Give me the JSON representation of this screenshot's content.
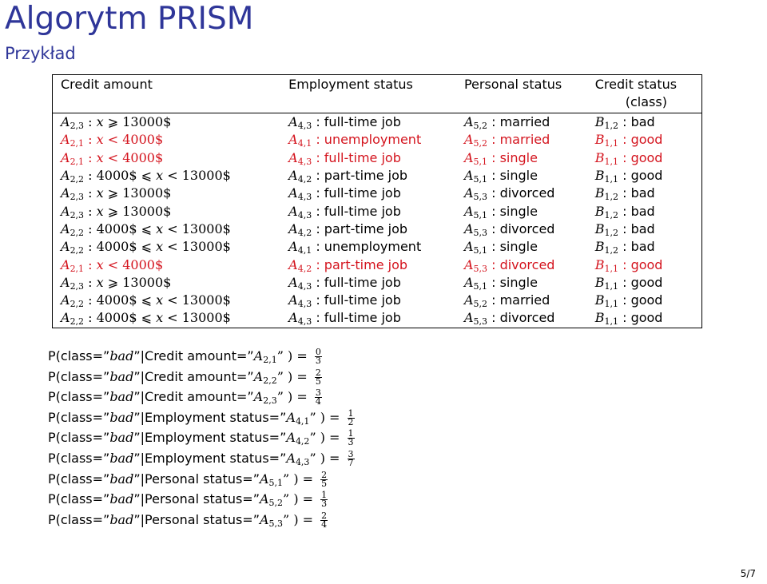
{
  "slide": {
    "title": "Algorytm PRISM",
    "subtitle": "Przykład",
    "page_number": "5/7"
  },
  "colors": {
    "title": "#2f3699",
    "highlight_row": "#d4141e"
  },
  "table": {
    "headers": [
      "Credit amount",
      "Employment status",
      "Personal status",
      "Credit status",
      "(class)"
    ],
    "rows": [
      {
        "highlight": false,
        "c1": [
          [
            "A",
            "2,3"
          ],
          " : ",
          [
            "x"
          ],
          " ⩾ 13000$"
        ],
        "c2": [
          [
            "A",
            "4,3"
          ],
          " : full-time job"
        ],
        "c3": [
          [
            "A",
            "5,2"
          ],
          " : married"
        ],
        "c4": [
          [
            "B",
            "1,2"
          ],
          " : bad"
        ]
      },
      {
        "highlight": true,
        "c1": [
          [
            "A",
            "2,1"
          ],
          " : ",
          [
            "x"
          ],
          " < 4000$"
        ],
        "c2": [
          [
            "A",
            "4,1"
          ],
          " : unemployment"
        ],
        "c3": [
          [
            "A",
            "5,2"
          ],
          " : married"
        ],
        "c4": [
          [
            "B",
            "1,1"
          ],
          " : good"
        ]
      },
      {
        "highlight": true,
        "c1": [
          [
            "A",
            "2,1"
          ],
          " : ",
          [
            "x"
          ],
          " < 4000$"
        ],
        "c2": [
          [
            "A",
            "4,3"
          ],
          " : full-time job"
        ],
        "c3": [
          [
            "A",
            "5,1"
          ],
          " : single"
        ],
        "c4": [
          [
            "B",
            "1,1"
          ],
          " : good"
        ]
      },
      {
        "highlight": false,
        "c1": [
          [
            "A",
            "2,2"
          ],
          " : 4000$ ⩽ ",
          [
            "x"
          ],
          " < 13000$"
        ],
        "c2": [
          [
            "A",
            "4,2"
          ],
          " : part-time job"
        ],
        "c3": [
          [
            "A",
            "5,1"
          ],
          " : single"
        ],
        "c4": [
          [
            "B",
            "1,1"
          ],
          " : good"
        ]
      },
      {
        "highlight": false,
        "c1": [
          [
            "A",
            "2,3"
          ],
          " : ",
          [
            "x"
          ],
          " ⩾ 13000$"
        ],
        "c2": [
          [
            "A",
            "4,3"
          ],
          " : full-time job"
        ],
        "c3": [
          [
            "A",
            "5,3"
          ],
          " : divorced"
        ],
        "c4": [
          [
            "B",
            "1,2"
          ],
          " : bad"
        ]
      },
      {
        "highlight": false,
        "c1": [
          [
            "A",
            "2,3"
          ],
          " : ",
          [
            "x"
          ],
          " ⩾ 13000$"
        ],
        "c2": [
          [
            "A",
            "4,3"
          ],
          " : full-time job"
        ],
        "c3": [
          [
            "A",
            "5,1"
          ],
          " : single"
        ],
        "c4": [
          [
            "B",
            "1,2"
          ],
          " : bad"
        ]
      },
      {
        "highlight": false,
        "c1": [
          [
            "A",
            "2,2"
          ],
          " : 4000$ ⩽ ",
          [
            "x"
          ],
          " < 13000$"
        ],
        "c2": [
          [
            "A",
            "4,2"
          ],
          " : part-time job"
        ],
        "c3": [
          [
            "A",
            "5,3"
          ],
          " : divorced"
        ],
        "c4": [
          [
            "B",
            "1,2"
          ],
          " : bad"
        ]
      },
      {
        "highlight": false,
        "c1": [
          [
            "A",
            "2,2"
          ],
          " : 4000$ ⩽ ",
          [
            "x"
          ],
          " < 13000$"
        ],
        "c2": [
          [
            "A",
            "4,1"
          ],
          " : unemployment"
        ],
        "c3": [
          [
            "A",
            "5,1"
          ],
          " : single"
        ],
        "c4": [
          [
            "B",
            "1,2"
          ],
          " : bad"
        ]
      },
      {
        "highlight": true,
        "c1": [
          [
            "A",
            "2,1"
          ],
          " : ",
          [
            "x"
          ],
          " < 4000$"
        ],
        "c2": [
          [
            "A",
            "4,2"
          ],
          " : part-time job"
        ],
        "c3": [
          [
            "A",
            "5,3"
          ],
          " : divorced"
        ],
        "c4": [
          [
            "B",
            "1,1"
          ],
          " : good"
        ]
      },
      {
        "highlight": false,
        "c1": [
          [
            "A",
            "2,3"
          ],
          " : ",
          [
            "x"
          ],
          " ⩾ 13000$"
        ],
        "c2": [
          [
            "A",
            "4,3"
          ],
          " : full-time job"
        ],
        "c3": [
          [
            "A",
            "5,1"
          ],
          " : single"
        ],
        "c4": [
          [
            "B",
            "1,1"
          ],
          " : good"
        ]
      },
      {
        "highlight": false,
        "c1": [
          [
            "A",
            "2,2"
          ],
          " : 4000$ ⩽ ",
          [
            "x"
          ],
          " < 13000$"
        ],
        "c2": [
          [
            "A",
            "4,3"
          ],
          " : full-time job"
        ],
        "c3": [
          [
            "A",
            "5,2"
          ],
          " : married"
        ],
        "c4": [
          [
            "B",
            "1,1"
          ],
          " : good"
        ]
      },
      {
        "highlight": false,
        "c1": [
          [
            "A",
            "2,2"
          ],
          " : 4000$ ⩽ ",
          [
            "x"
          ],
          " < 13000$"
        ],
        "c2": [
          [
            "A",
            "4,3"
          ],
          " : full-time job"
        ],
        "c3": [
          [
            "A",
            "5,3"
          ],
          " : divorced"
        ],
        "c4": [
          [
            "B",
            "1,1"
          ],
          " : good"
        ]
      }
    ]
  },
  "probabilities": [
    {
      "attr": "Credit amount",
      "sub": "2,1",
      "num": "0",
      "den": "3"
    },
    {
      "attr": "Credit amount",
      "sub": "2,2",
      "num": "2",
      "den": "5"
    },
    {
      "attr": "Credit amount",
      "sub": "2,3",
      "num": "3",
      "den": "4"
    },
    {
      "attr": "Employment status",
      "sub": "4,1",
      "num": "1",
      "den": "2"
    },
    {
      "attr": "Employment status",
      "sub": "4,2",
      "num": "1",
      "den": "3"
    },
    {
      "attr": "Employment status",
      "sub": "4,3",
      "num": "3",
      "den": "7"
    },
    {
      "attr": "Personal status",
      "sub": "5,1",
      "num": "2",
      "den": "5"
    },
    {
      "attr": "Personal status",
      "sub": "5,2",
      "num": "1",
      "den": "3"
    },
    {
      "attr": "Personal status",
      "sub": "5,3",
      "num": "2",
      "den": "4"
    }
  ],
  "prob_text": {
    "prefix": "P(class=”",
    "class_value": "bad",
    "bar": "”|",
    "eq": "=”",
    "close": "” ) = "
  }
}
